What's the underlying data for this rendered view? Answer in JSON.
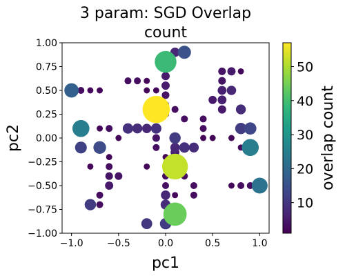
{
  "chart_data": {
    "type": "scatter",
    "title_lines": [
      "3 param: SGD Overlap",
      "count"
    ],
    "xlabel": "pc1",
    "ylabel": "pc2",
    "xlim": [
      -1.1,
      1.1
    ],
    "ylim": [
      -1.0,
      1.0
    ],
    "xticks": [
      -1.0,
      -0.5,
      0.0,
      0.5,
      1.0
    ],
    "xtick_labels": [
      "−1.0",
      "−0.5",
      "0.0",
      "0.5",
      "1.0"
    ],
    "yticks": [
      -1.0,
      -0.75,
      -0.5,
      -0.25,
      0.0,
      0.25,
      0.5,
      0.75,
      1.0
    ],
    "ytick_labels": [
      "−1.00",
      "−0.75",
      "−0.50",
      "−0.25",
      "0.00",
      "0.25",
      "0.50",
      "0.75",
      "1.00"
    ],
    "grid": false,
    "colorbar": {
      "label": "overlap count",
      "range": [
        1,
        57
      ],
      "ticks": [
        10,
        20,
        30,
        40,
        50
      ],
      "tick_labels": [
        "10",
        "20",
        "30",
        "40",
        "50"
      ],
      "colormap": [
        "#440154",
        "#482878",
        "#3e4989",
        "#31688e",
        "#26828e",
        "#1f9e89",
        "#35b779",
        "#6ece58",
        "#b5de2b",
        "#fde725"
      ]
    },
    "points": [
      {
        "x": -0.1,
        "y": 0.3,
        "count": 57
      },
      {
        "x": 0.1,
        "y": -0.3,
        "count": 52
      },
      {
        "x": 0.0,
        "y": 0.8,
        "count": 39
      },
      {
        "x": 0.1,
        "y": -0.8,
        "count": 44
      },
      {
        "x": -0.9,
        "y": 0.1,
        "count": 25
      },
      {
        "x": 0.9,
        "y": -0.1,
        "count": 25
      },
      {
        "x": 1.0,
        "y": -0.5,
        "count": 22
      },
      {
        "x": -1.0,
        "y": 0.5,
        "count": 18
      },
      {
        "x": 0.2,
        "y": 0.9,
        "count": 15
      },
      {
        "x": -0.7,
        "y": -0.1,
        "count": 14
      },
      {
        "x": -0.8,
        "y": -0.7,
        "count": 11
      },
      {
        "x": 0.8,
        "y": 0.1,
        "count": 11
      },
      {
        "x": 0.9,
        "y": 0.1,
        "count": 13
      },
      {
        "x": -0.9,
        "y": -0.1,
        "count": 12
      },
      {
        "x": 0.0,
        "y": -0.9,
        "count": 11
      },
      {
        "x": -0.2,
        "y": -0.9,
        "count": 10
      },
      {
        "x": 0.2,
        "y": -0.1,
        "count": 9
      },
      {
        "x": 0.3,
        "y": -0.1,
        "count": 8
      },
      {
        "x": 0.8,
        "y": 0.3,
        "count": 8
      },
      {
        "x": 0.7,
        "y": 0.5,
        "count": 7
      },
      {
        "x": -0.3,
        "y": 0.1,
        "count": 8
      },
      {
        "x": -0.2,
        "y": 0.1,
        "count": 7
      },
      {
        "x": -0.4,
        "y": 0.1,
        "count": 9
      },
      {
        "x": -0.1,
        "y": 0.1,
        "count": 9
      },
      {
        "x": 0.0,
        "y": -0.7,
        "count": 8
      },
      {
        "x": 0.0,
        "y": -0.6,
        "count": 7
      },
      {
        "x": 0.1,
        "y": 0.9,
        "count": 7
      },
      {
        "x": 0.0,
        "y": 0.65,
        "count": 5
      },
      {
        "x": 0.0,
        "y": 0.55,
        "count": 5
      },
      {
        "x": 0.0,
        "y": 0.45,
        "count": 4
      },
      {
        "x": 0.1,
        "y": -0.1,
        "count": 7
      },
      {
        "x": 0.1,
        "y": -0.15,
        "count": 6
      },
      {
        "x": 0.1,
        "y": 0.0,
        "count": 11
      },
      {
        "x": -0.1,
        "y": -0.1,
        "count": 3
      },
      {
        "x": 0.6,
        "y": 0.5,
        "count": 6
      },
      {
        "x": 0.6,
        "y": 0.4,
        "count": 6
      },
      {
        "x": 0.5,
        "y": 0.4,
        "count": 5
      },
      {
        "x": 0.6,
        "y": 0.3,
        "count": 5
      },
      {
        "x": 0.4,
        "y": 0.2,
        "count": 3
      },
      {
        "x": 0.4,
        "y": 0.1,
        "count": 3
      },
      {
        "x": 0.4,
        "y": 0.0,
        "count": 2
      },
      {
        "x": 0.7,
        "y": 0.0,
        "count": 2
      },
      {
        "x": 0.8,
        "y": -0.1,
        "count": 2
      },
      {
        "x": 0.8,
        "y": -0.5,
        "count": 3
      },
      {
        "x": 0.9,
        "y": -0.5,
        "count": 3
      },
      {
        "x": 0.7,
        "y": -0.5,
        "count": 2
      },
      {
        "x": 0.3,
        "y": -0.5,
        "count": 3
      },
      {
        "x": 0.3,
        "y": -0.6,
        "count": 3
      },
      {
        "x": 0.0,
        "y": -0.4,
        "count": 3
      },
      {
        "x": 0.0,
        "y": -0.5,
        "count": 3
      },
      {
        "x": -0.6,
        "y": -0.4,
        "count": 4
      },
      {
        "x": -0.6,
        "y": -0.3,
        "count": 3
      },
      {
        "x": -0.6,
        "y": -0.2,
        "count": 2
      },
      {
        "x": -0.5,
        "y": -0.4,
        "count": 4
      },
      {
        "x": -0.6,
        "y": -0.5,
        "count": 5
      },
      {
        "x": -0.7,
        "y": -0.6,
        "count": 3
      },
      {
        "x": -0.7,
        "y": -0.7,
        "count": 3
      },
      {
        "x": -0.8,
        "y": -0.3,
        "count": 2
      },
      {
        "x": -0.9,
        "y": 0.5,
        "count": 3
      },
      {
        "x": -0.8,
        "y": 0.5,
        "count": 2
      },
      {
        "x": -0.7,
        "y": 0.5,
        "count": 2
      },
      {
        "x": -0.4,
        "y": 0.6,
        "count": 3
      },
      {
        "x": -0.3,
        "y": 0.6,
        "count": 3
      },
      {
        "x": -0.2,
        "y": 0.5,
        "count": 2
      },
      {
        "x": -0.1,
        "y": 0.5,
        "count": 2
      },
      {
        "x": 0.0,
        "y": 0.35,
        "count": 3
      },
      {
        "x": 0.0,
        "y": 0.25,
        "count": 3
      },
      {
        "x": -0.2,
        "y": 0.6,
        "count": 2
      },
      {
        "x": -0.6,
        "y": 0.1,
        "count": 3
      },
      {
        "x": -0.7,
        "y": 0.1,
        "count": 2
      },
      {
        "x": -0.1,
        "y": 0.0,
        "count": 4
      },
      {
        "x": 0.2,
        "y": 0.2,
        "count": 3
      },
      {
        "x": 0.1,
        "y": 0.3,
        "count": 3
      },
      {
        "x": 0.6,
        "y": 0.6,
        "count": 4
      },
      {
        "x": 0.6,
        "y": 0.7,
        "count": 4
      },
      {
        "x": 0.7,
        "y": 0.7,
        "count": 5
      },
      {
        "x": 0.8,
        "y": 0.7,
        "count": 2
      },
      {
        "x": 0.5,
        "y": 0.0,
        "count": 2
      },
      {
        "x": -0.5,
        "y": 0.0,
        "count": 2
      },
      {
        "x": 0.2,
        "y": -0.4,
        "count": 3
      },
      {
        "x": 0.0,
        "y": -0.2,
        "count": 2
      },
      {
        "x": -0.2,
        "y": -0.3,
        "count": 2
      },
      {
        "x": 0.1,
        "y": -0.6,
        "count": 2
      }
    ]
  }
}
